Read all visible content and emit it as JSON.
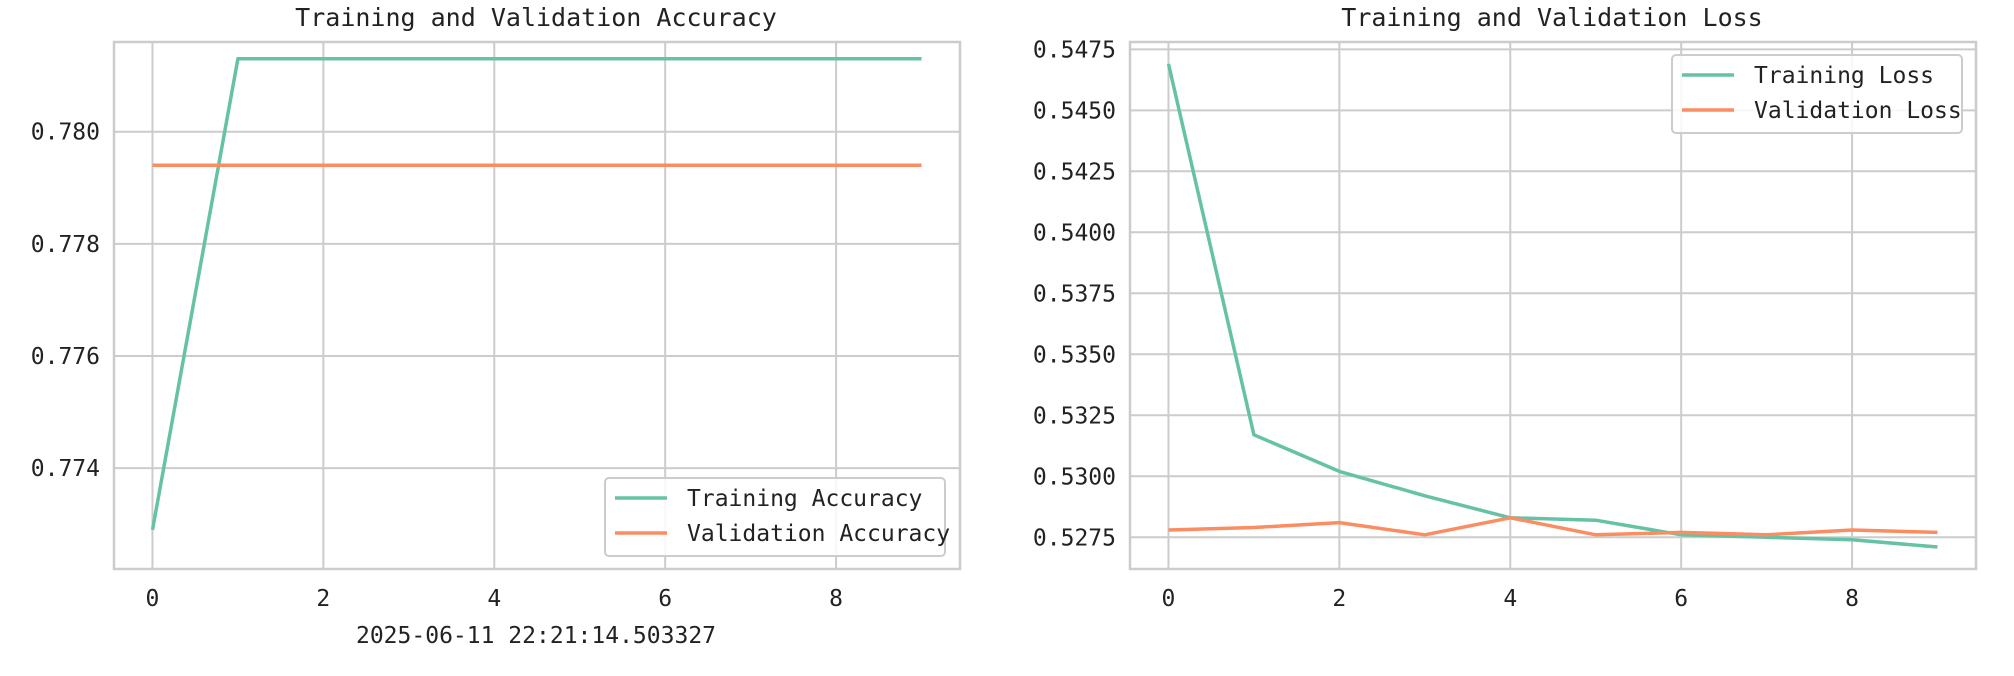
{
  "caption": "2025-06-11 22:21:14.503327",
  "chart_data": [
    {
      "type": "line",
      "title": "Training and Validation Accuracy",
      "xlabel": "",
      "ylabel": "",
      "x": [
        0,
        1,
        2,
        3,
        4,
        5,
        6,
        7,
        8,
        9
      ],
      "xlim": [
        -0.45,
        9.45
      ],
      "ylim": [
        0.7722,
        0.7816
      ],
      "xticks": [
        0,
        2,
        4,
        6,
        8
      ],
      "yticks": [
        0.774,
        0.776,
        0.778,
        0.78
      ],
      "ytick_labels": [
        "0.774",
        "0.776",
        "0.778",
        "0.780"
      ],
      "grid": true,
      "legend_position": "lower-right",
      "series": [
        {
          "name": "Training Accuracy",
          "color": "#66c2a5",
          "values": [
            0.7729,
            0.7813,
            0.7813,
            0.7813,
            0.7813,
            0.7813,
            0.7813,
            0.7813,
            0.7813,
            0.7813
          ]
        },
        {
          "name": "Validation Accuracy",
          "color": "#fc8d62",
          "values": [
            0.7794,
            0.7794,
            0.7794,
            0.7794,
            0.7794,
            0.7794,
            0.7794,
            0.7794,
            0.7794,
            0.7794
          ]
        }
      ]
    },
    {
      "type": "line",
      "title": "Training and Validation Loss",
      "xlabel": "",
      "ylabel": "",
      "x": [
        0,
        1,
        2,
        3,
        4,
        5,
        6,
        7,
        8,
        9
      ],
      "xlim": [
        -0.45,
        9.45
      ],
      "ylim": [
        0.5262,
        0.5478
      ],
      "xticks": [
        0,
        2,
        4,
        6,
        8
      ],
      "yticks": [
        0.5275,
        0.53,
        0.5325,
        0.535,
        0.5375,
        0.54,
        0.5425,
        0.545,
        0.5475
      ],
      "ytick_labels": [
        "0.5275",
        "0.5300",
        "0.5325",
        "0.5350",
        "0.5375",
        "0.5400",
        "0.5425",
        "0.5450",
        "0.5475"
      ],
      "grid": true,
      "legend_position": "upper-right",
      "series": [
        {
          "name": "Training Loss",
          "color": "#66c2a5",
          "values": [
            0.5469,
            0.5317,
            0.5302,
            0.5292,
            0.5283,
            0.5282,
            0.5276,
            0.5275,
            0.5274,
            0.5271
          ]
        },
        {
          "name": "Validation Loss",
          "color": "#fc8d62",
          "values": [
            0.5278,
            0.5279,
            0.5281,
            0.5276,
            0.5283,
            0.5276,
            0.5277,
            0.5276,
            0.5278,
            0.5277
          ]
        }
      ]
    }
  ]
}
